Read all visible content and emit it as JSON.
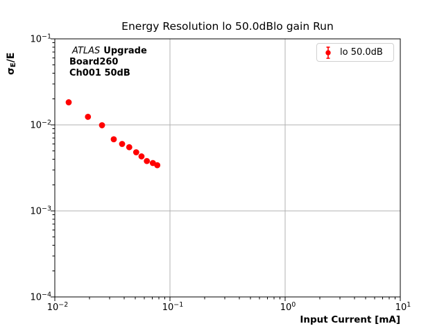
{
  "chart_data": {
    "type": "scatter",
    "title": "Energy Resolution lo 50.0dBlo gain Run",
    "xlabel": "Input Current [mA]",
    "ylabel": "sigma_E/E",
    "ylabel_parts": {
      "symbol": "σ",
      "subscript": "E",
      "rest": "/E"
    },
    "xscale": "log",
    "yscale": "log",
    "xlim": [
      0.01,
      10
    ],
    "ylim": [
      0.0001,
      0.1
    ],
    "x_tick_exponents": [
      -2,
      -1,
      0,
      1
    ],
    "y_tick_exponents": [
      -1,
      -2,
      -3,
      -4
    ],
    "grid": true,
    "legend_position": "upper right",
    "legend": {
      "label": "lo 50.0dB"
    },
    "annotation": {
      "experiment": "ATLAS",
      "label": "Upgrade",
      "line2": "Board260",
      "line3": "Ch001 50dB"
    },
    "series": [
      {
        "name": "lo 50.0dB",
        "color": "#ff0000",
        "marker": "circle-errorbar",
        "x": [
          0.0132,
          0.0194,
          0.0257,
          0.0325,
          0.0384,
          0.0443,
          0.0509,
          0.0566,
          0.063,
          0.071,
          0.0776
        ],
        "y": [
          0.0183,
          0.0124,
          0.0099,
          0.0068,
          0.006,
          0.0055,
          0.0048,
          0.0043,
          0.0038,
          0.0036,
          0.0034
        ]
      }
    ],
    "colors": {
      "marker": "#ff0000",
      "grid": "#b0b0b0",
      "axis": "#000000",
      "legend_border": "#d0d0d0",
      "background": "#ffffff"
    }
  }
}
